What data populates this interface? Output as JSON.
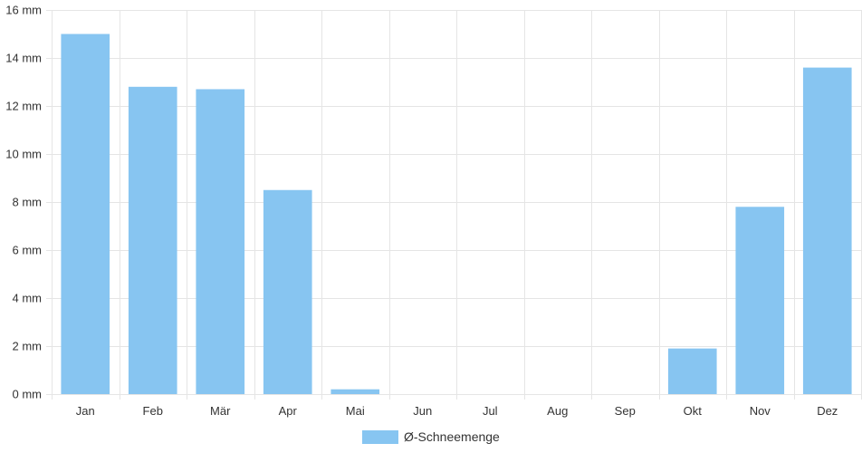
{
  "chart_data": {
    "type": "bar",
    "categories": [
      "Jan",
      "Feb",
      "Mär",
      "Apr",
      "Mai",
      "Jun",
      "Jul",
      "Aug",
      "Sep",
      "Okt",
      "Nov",
      "Dez"
    ],
    "series": [
      {
        "name": "Ø-Schneemenge",
        "color": "#87c5f1",
        "values": [
          15.0,
          12.8,
          12.7,
          8.5,
          0.2,
          0,
          0,
          0,
          0,
          1.9,
          7.8,
          13.6
        ]
      }
    ],
    "ylim": [
      0,
      16
    ],
    "yticks": [
      0,
      2,
      4,
      6,
      8,
      10,
      12,
      14,
      16
    ],
    "ytick_labels": [
      "0 mm",
      "2 mm",
      "4 mm",
      "6 mm",
      "8 mm",
      "10 mm",
      "12 mm",
      "14 mm",
      "16 mm"
    ],
    "grid": true,
    "legend_position": "bottom-center",
    "gridline_color": "#e5e5e5"
  }
}
